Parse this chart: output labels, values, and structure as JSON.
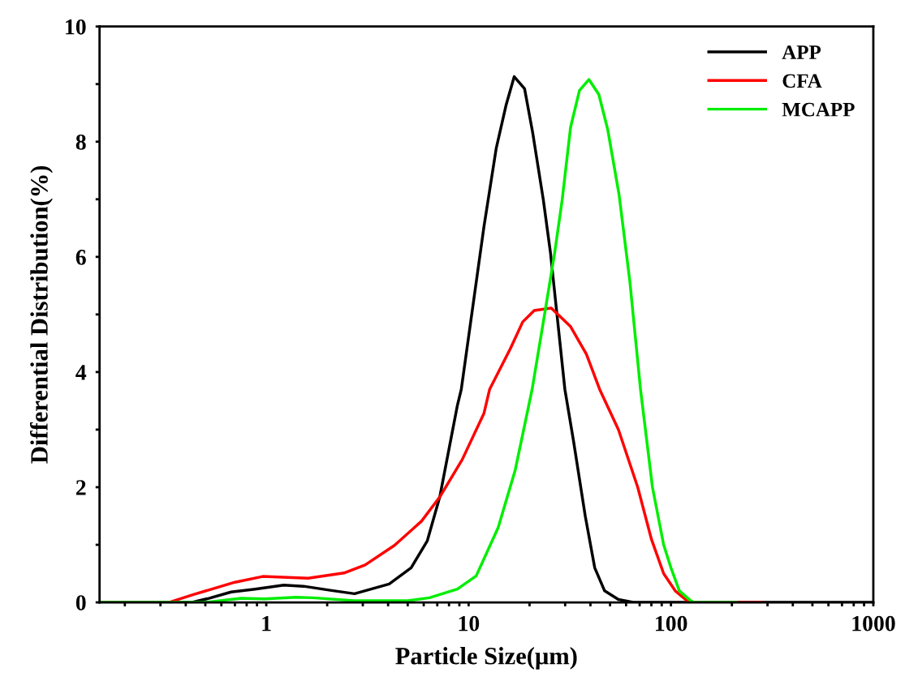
{
  "chart_data": {
    "type": "line",
    "xlabel": "Particle Size(μm)",
    "ylabel": "Differential Distribution(%)",
    "log": "x",
    "legend": "top right",
    "grid": false,
    "marker": "none",
    "line_style": "solid",
    "xlim": [
      0.15,
      1000
    ],
    "ylim": [
      0,
      10
    ],
    "xticks": [
      {
        "value": 0.2,
        "label": null
      },
      {
        "value": 0.3,
        "label": null
      },
      {
        "value": 0.4,
        "label": null
      },
      {
        "value": 0.5,
        "label": null
      },
      {
        "value": 0.6,
        "label": null
      },
      {
        "value": 0.7,
        "label": null
      },
      {
        "value": 0.8,
        "label": null
      },
      {
        "value": 0.9,
        "label": null
      },
      1,
      {
        "value": 2,
        "label": null
      },
      {
        "value": 3,
        "label": null
      },
      {
        "value": 4,
        "label": null
      },
      {
        "value": 5,
        "label": null
      },
      {
        "value": 6,
        "label": null
      },
      {
        "value": 7,
        "label": null
      },
      {
        "value": 8,
        "label": null
      },
      {
        "value": 9,
        "label": null
      },
      10,
      {
        "value": 20,
        "label": null
      },
      {
        "value": 30,
        "label": null
      },
      {
        "value": 40,
        "label": null
      },
      {
        "value": 50,
        "label": null
      },
      {
        "value": 60,
        "label": null
      },
      {
        "value": 70,
        "label": null
      },
      {
        "value": 80,
        "label": null
      },
      {
        "value": 90,
        "label": null
      },
      100,
      {
        "value": 200,
        "label": null
      },
      {
        "value": 300,
        "label": null
      },
      {
        "value": 400,
        "label": null
      },
      {
        "value": 500,
        "label": null
      },
      {
        "value": 600,
        "label": null
      },
      {
        "value": 700,
        "label": null
      },
      {
        "value": 800,
        "label": null
      },
      {
        "value": 900,
        "label": null
      },
      1000
    ],
    "yticks": [
      0,
      {
        "value": 1,
        "label": null
      },
      2,
      {
        "value": 3,
        "label": null
      },
      4,
      {
        "value": 5,
        "label": null
      },
      6,
      {
        "value": 7,
        "label": null
      },
      8,
      {
        "value": 9,
        "label": null
      },
      10
    ],
    "series": [
      {
        "name": "APP",
        "color": "#000000",
        "x": [
          0.15,
          0.43,
          0.52,
          0.67,
          0.88,
          1.22,
          1.53,
          2.07,
          2.73,
          4.05,
          5.2,
          6.25,
          7.2,
          8.8,
          9.2,
          11.9,
          13.7,
          15.3,
          16.8,
          18.9,
          20.7,
          23.4,
          25.4,
          29.9,
          33,
          37.7,
          42,
          47,
          55,
          65,
          1000
        ],
        "values": [
          0,
          0,
          0.07,
          0.18,
          0.23,
          0.3,
          0.28,
          0.21,
          0.15,
          0.32,
          0.6,
          1.07,
          1.83,
          3.42,
          3.7,
          6.52,
          7.89,
          8.63,
          9.13,
          8.92,
          8.17,
          6.99,
          6.06,
          3.7,
          2.8,
          1.5,
          0.6,
          0.2,
          0.05,
          0,
          0
        ]
      },
      {
        "name": "CFA",
        "color": "#ff0000",
        "x": [
          0.15,
          0.33,
          0.44,
          0.7,
          0.96,
          1.61,
          2.42,
          3.08,
          4.3,
          5.85,
          7.2,
          9.3,
          11.9,
          12.7,
          16.1,
          18.5,
          21.1,
          25.6,
          31.9,
          38.2,
          44.4,
          55,
          68.5,
          80,
          92,
          105,
          120,
          130,
          280
        ],
        "values": [
          0,
          0,
          0.14,
          0.35,
          0.45,
          0.42,
          0.51,
          0.65,
          0.99,
          1.41,
          1.83,
          2.48,
          3.28,
          3.7,
          4.41,
          4.87,
          5.07,
          5.11,
          4.79,
          4.31,
          3.7,
          3.0,
          2.0,
          1.1,
          0.5,
          0.2,
          0.03,
          0,
          0
        ]
      },
      {
        "name": "MCAPP",
        "color": "#00ee00",
        "x": [
          0.15,
          0.5,
          0.75,
          0.98,
          1.4,
          1.7,
          2.73,
          5,
          6.4,
          8.8,
          10.9,
          14,
          17,
          20.6,
          23.4,
          26.6,
          29.0,
          31.9,
          35.3,
          39.3,
          44.0,
          48.7,
          55.4,
          62.6,
          70.7,
          81,
          92,
          100,
          110,
          125,
          130,
          210
        ],
        "values": [
          0,
          0,
          0.07,
          0.06,
          0.09,
          0.08,
          0.03,
          0.03,
          0.08,
          0.23,
          0.46,
          1.3,
          2.3,
          3.7,
          4.87,
          6.06,
          6.99,
          8.25,
          8.89,
          9.08,
          8.82,
          8.21,
          7.08,
          5.58,
          3.7,
          2.0,
          1.0,
          0.6,
          0.2,
          0.03,
          0,
          0
        ]
      }
    ]
  }
}
